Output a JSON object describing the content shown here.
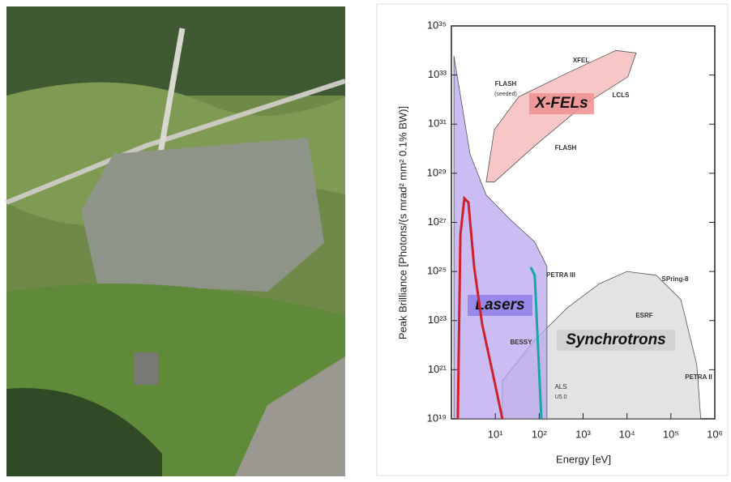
{
  "chart_data": {
    "type": "area",
    "xlabel": "Energy  [eV]",
    "ylabel": "Peak Brilliance  [Photons/(s mrad² mm² 0.1% BW)]",
    "xscale": "log",
    "yscale": "log",
    "xlim": [
      1,
      1000000
    ],
    "ylim": [
      1e+19,
      1e+35
    ],
    "xticks": [
      {
        "value": 10,
        "label": "10¹"
      },
      {
        "value": 100,
        "label": "10²"
      },
      {
        "value": 1000,
        "label": "10³"
      },
      {
        "value": 10000,
        "label": "10⁴"
      },
      {
        "value": 100000,
        "label": "10⁵"
      },
      {
        "value": 1000000,
        "label": "10⁶"
      }
    ],
    "yticks": [
      {
        "value": 1e+19,
        "label": "10¹⁹"
      },
      {
        "value": 1e+21,
        "label": "10²¹"
      },
      {
        "value": 1e+23,
        "label": "10²³"
      },
      {
        "value": 1e+25,
        "label": "10²⁵"
      },
      {
        "value": 1e+27,
        "label": "10²⁷"
      },
      {
        "value": 1e+29,
        "label": "10²⁹"
      },
      {
        "value": 1e+31,
        "label": "10³¹"
      },
      {
        "value": 1e+33,
        "label": "10³³"
      },
      {
        "value": 1e+35,
        "label": "10³⁵"
      }
    ],
    "series": [
      {
        "name": "Synchrotrons",
        "color": "#d9d9d9",
        "fill": true,
        "x": [
          14.5,
          79,
          435,
          2380,
          10000,
          46500,
          170000,
          390000,
          480000
        ],
        "values": [
          3.5e+20,
          1.6e+22,
          3.3e+23,
          3.2e+24,
          1e+25,
          7e+24,
          7e+23,
          1.6e+21,
          1e+19
        ]
      },
      {
        "name": "Lasers",
        "color": "#b9a6f0",
        "fill": true,
        "x": [
          1.14,
          2.66,
          6.2,
          22,
          79,
          150,
          150
        ],
        "values": [
          6e+33,
          6e+29,
          1.3e+28,
          1.3e+27,
          1.6e+26,
          1.6e+25,
          1e+19
        ]
      },
      {
        "name": "X-FELs",
        "color": "#f4b3b3",
        "fill": true,
        "closed": true,
        "x": [
          6.2,
          9.5,
          34,
          435,
          5560,
          16100,
          10500,
          1020,
          79,
          9.5
        ],
        "values": [
          4.4e+28,
          6e+30,
          1.3e+32,
          1.2e+33,
          1e+34,
          8e+33,
          8.5e+32,
          6e+31,
          1.3e+30,
          4.4e+28
        ]
      },
      {
        "color": "#d0202a",
        "fill": false,
        "x": [
          1.4,
          1.6,
          1.97,
          2.44,
          3.3,
          5.0,
          9.5,
          14.5
        ],
        "values": [
          1e+19,
          3.1e+26,
          9.5e+27,
          6.5e+27,
          1.5e+25,
          7.2e+22,
          3.5e+20,
          1e+19
        ]
      },
      {
        "name": "PETRA III",
        "color": "#1aa6a6",
        "fill": false,
        "x": [
          64,
          79,
          112
        ],
        "values": [
          1.5e+25,
          7e+24,
          1e+19
        ]
      }
    ],
    "annotations": [
      "FLASH",
      "(seeded)",
      "XFEL",
      "LCLS",
      "FLASH",
      "BESSY",
      "ESRF",
      "SPring-8",
      "ALS",
      "U5.0",
      "PETRA II"
    ]
  }
}
